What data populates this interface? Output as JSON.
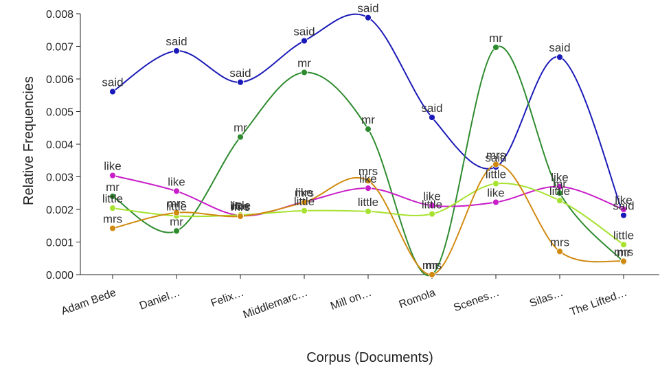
{
  "chart_data": {
    "type": "line",
    "title": "",
    "xlabel": "Corpus (Documents)",
    "ylabel": "Relative Frequencies",
    "ylim": [
      0,
      0.008
    ],
    "yticks": [
      "0.000",
      "0.001",
      "0.002",
      "0.003",
      "0.004",
      "0.005",
      "0.006",
      "0.007",
      "0.008"
    ],
    "categories": [
      "Adam Bede",
      "Daniel…",
      "Felix…",
      "Middlemarc…",
      "Mill on…",
      "Romola",
      "Scenes…",
      "Silas…",
      "The Lifted…"
    ],
    "grid": false,
    "legend": "none",
    "series": [
      {
        "name": "said",
        "color": "#1a1ab8",
        "values": [
          0.00561,
          0.00686,
          0.0059,
          0.00717,
          0.00788,
          0.00482,
          0.0033,
          0.00667,
          0.00182
        ]
      },
      {
        "name": "mr",
        "color": "#2e8b2e",
        "values": [
          0.0024,
          0.00134,
          0.00422,
          0.0062,
          0.00446,
          0.0,
          0.00697,
          0.0025,
          0.00039
        ]
      },
      {
        "name": "like",
        "color": "#c81ec8",
        "values": [
          0.00304,
          0.00256,
          0.00181,
          0.00223,
          0.00265,
          0.00212,
          0.00222,
          0.0027,
          0.002
        ]
      },
      {
        "name": "little",
        "color": "#a6e22e",
        "values": [
          0.00204,
          0.0018,
          0.00183,
          0.00196,
          0.00194,
          0.00186,
          0.00279,
          0.00227,
          0.00092
        ]
      },
      {
        "name": "mrs",
        "color": "#d08a10",
        "values": [
          0.00142,
          0.0019,
          0.00179,
          0.00222,
          0.00288,
          0.0,
          0.00338,
          0.00071,
          0.00041
        ]
      }
    ]
  }
}
